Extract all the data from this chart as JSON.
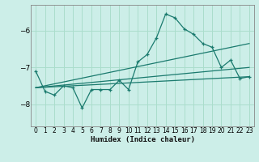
{
  "title": "",
  "xlabel": "Humidex (Indice chaleur)",
  "bg_color": "#cceee8",
  "grid_color": "#aaddcc",
  "line_color": "#1a7a6e",
  "xlim": [
    -0.5,
    23.5
  ],
  "ylim": [
    -8.6,
    -5.3
  ],
  "yticks": [
    -8,
    -7,
    -6
  ],
  "xticks": [
    0,
    1,
    2,
    3,
    4,
    5,
    6,
    7,
    8,
    9,
    10,
    11,
    12,
    13,
    14,
    15,
    16,
    17,
    18,
    19,
    20,
    21,
    22,
    23
  ],
  "series1_x": [
    0,
    1,
    2,
    3,
    4,
    5,
    6,
    7,
    8,
    9,
    10,
    11,
    12,
    13,
    14,
    15,
    16,
    17,
    18,
    19,
    20,
    21,
    22,
    23
  ],
  "series1_y": [
    -7.1,
    -7.65,
    -7.75,
    -7.5,
    -7.55,
    -8.1,
    -7.6,
    -7.6,
    -7.6,
    -7.35,
    -7.6,
    -6.85,
    -6.65,
    -6.2,
    -5.55,
    -5.65,
    -5.95,
    -6.1,
    -6.35,
    -6.45,
    -7.0,
    -6.8,
    -7.3,
    -7.25
  ],
  "trend1_x": [
    0,
    23
  ],
  "trend1_y": [
    -7.55,
    -7.25
  ],
  "trend2_x": [
    0,
    23
  ],
  "trend2_y": [
    -7.55,
    -7.0
  ],
  "trend3_x": [
    0,
    23
  ],
  "trend3_y": [
    -7.55,
    -6.35
  ]
}
